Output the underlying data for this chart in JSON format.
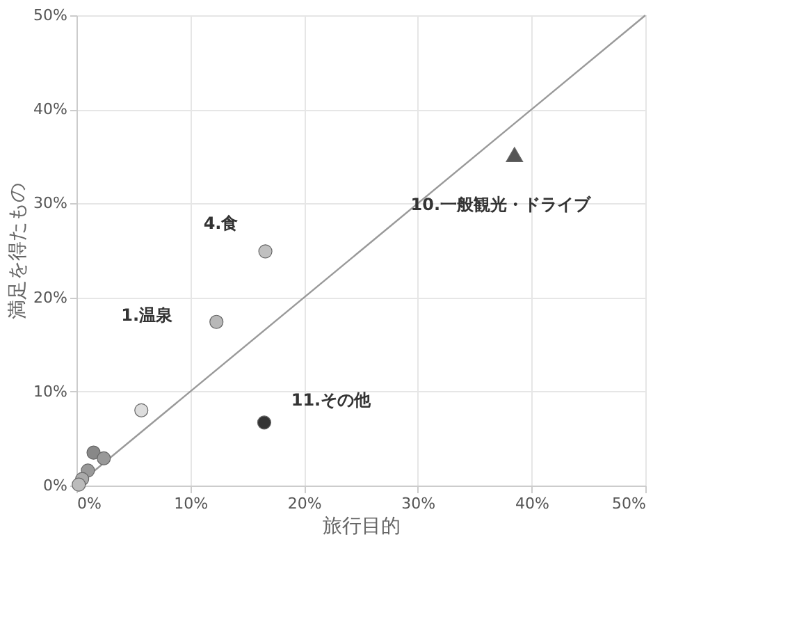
{
  "chart_data": {
    "type": "scatter",
    "xlabel": "旅行目的",
    "ylabel": "満足を得たもの",
    "xlim": [
      0,
      50
    ],
    "ylim": [
      0,
      50
    ],
    "xticks": [
      {
        "value": 0,
        "label": "0%"
      },
      {
        "value": 10,
        "label": "10%"
      },
      {
        "value": 20,
        "label": "20%"
      },
      {
        "value": 30,
        "label": "30%"
      },
      {
        "value": 40,
        "label": "40%"
      },
      {
        "value": 50,
        "label": "50%"
      }
    ],
    "yticks": [
      {
        "value": 0,
        "label": "0%"
      },
      {
        "value": 10,
        "label": "10%"
      },
      {
        "value": 20,
        "label": "20%"
      },
      {
        "value": 30,
        "label": "30%"
      },
      {
        "value": 40,
        "label": "40%"
      },
      {
        "value": 50,
        "label": "50%"
      }
    ],
    "grid": true,
    "series": [
      {
        "type": "line",
        "color": "#999999",
        "x": [
          0,
          50
        ],
        "values": [
          0,
          50
        ],
        "marker": "none"
      },
      {
        "marker": "circle",
        "x": [
          12.3,
          16.6,
          5.7,
          1.5,
          2.4,
          1.0,
          0.5,
          0.2
        ],
        "values": [
          17.4,
          24.9,
          8.0,
          3.5,
          2.9,
          1.6,
          0.7,
          0.1
        ],
        "colors": [
          "#b8b8b8",
          "#c0c0c0",
          "#dddddd",
          "#888888",
          "#999999",
          "#999999",
          "#aaaaaa",
          "#bbbbbb"
        ]
      },
      {
        "marker": "circle",
        "color": "#333333",
        "x": [
          16.5
        ],
        "values": [
          6.7
        ]
      },
      {
        "marker": "triangle",
        "color": "#555555",
        "x": [
          38.5
        ],
        "values": [
          35.2
        ]
      }
    ],
    "annotations": [
      {
        "text": "1.温泉",
        "x": 12.3,
        "y": 17.4
      },
      {
        "text": "4.食",
        "x": 16.6,
        "y": 24.9
      },
      {
        "text": "11.その他",
        "x": 16.5,
        "y": 6.7
      },
      {
        "text": "10.一般観光・ドライブ",
        "x": 38.5,
        "y": 35.2
      }
    ]
  }
}
